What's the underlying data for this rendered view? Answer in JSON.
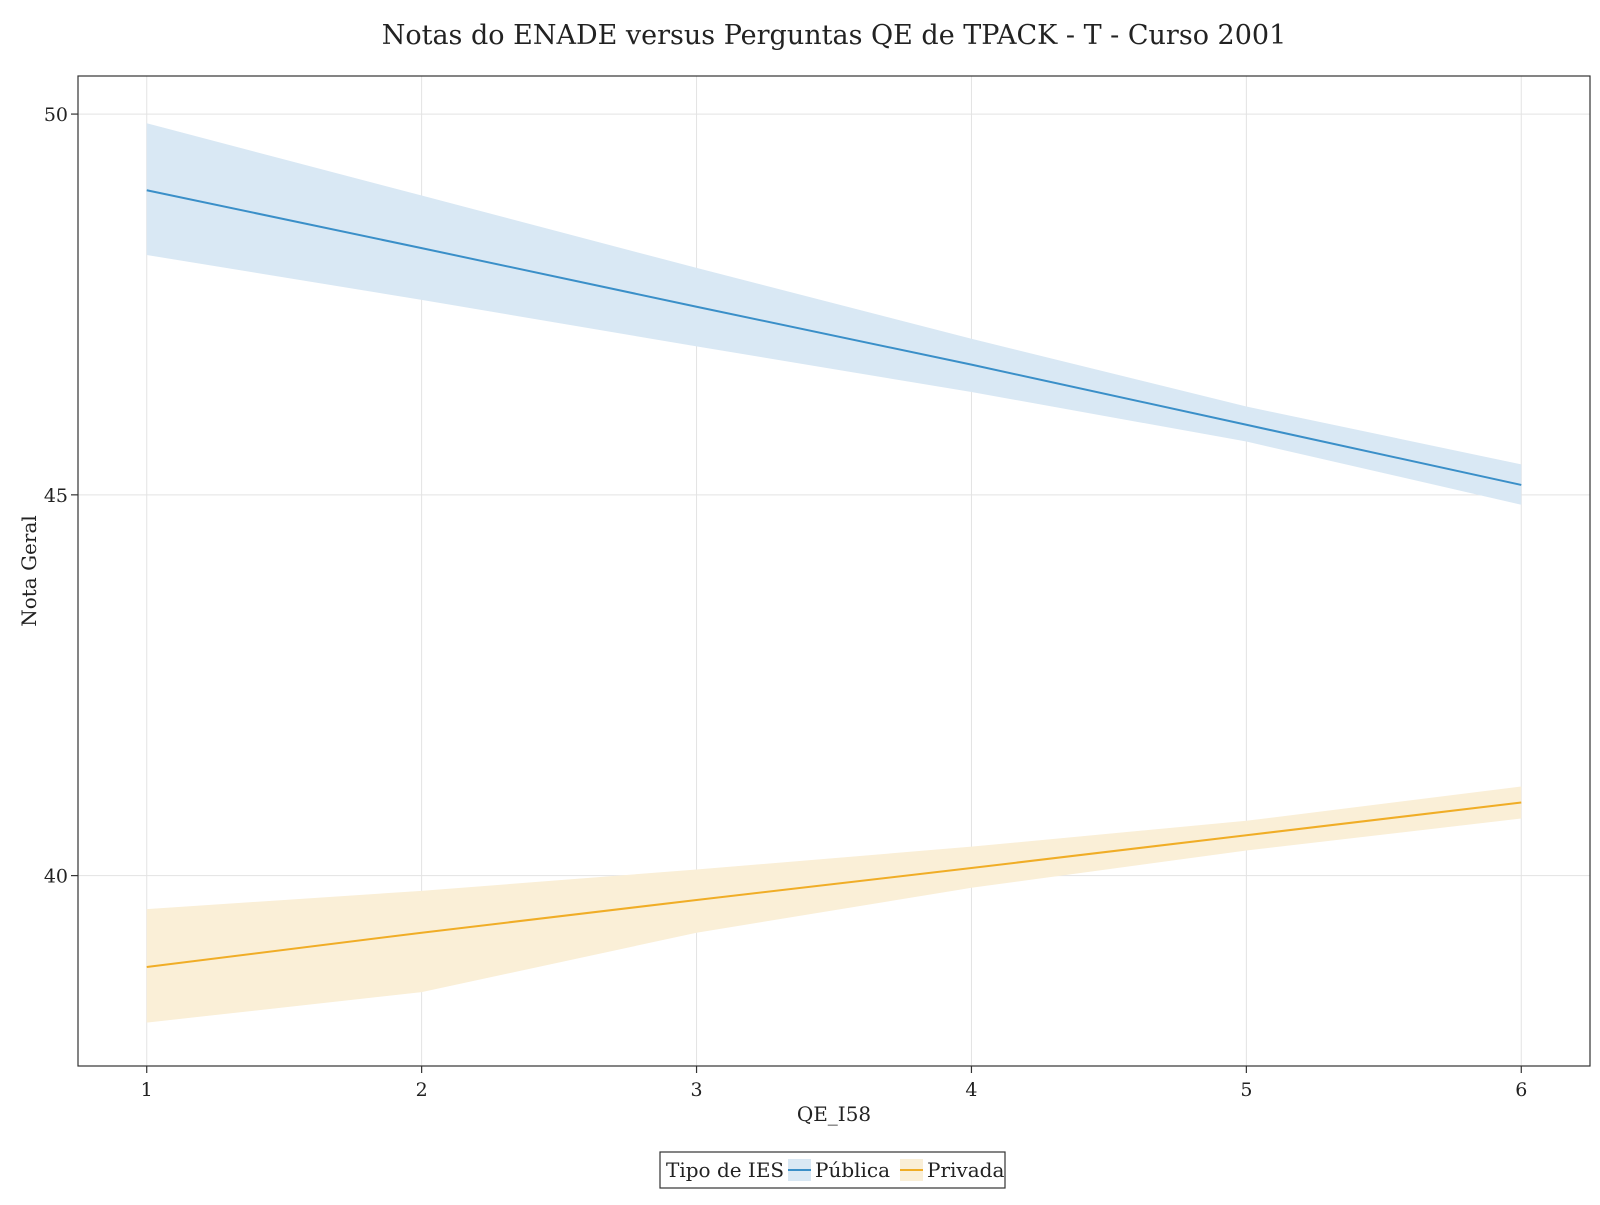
{
  "chart_data": {
    "type": "line",
    "title": "Notas do ENADE versus Perguntas QE de TPACK - T - Curso 2001",
    "xlabel": "QE_I58",
    "ylabel": "Nota Geral",
    "xlim": [
      0.75,
      6.25
    ],
    "ylim": [
      37.5,
      50.5
    ],
    "x_ticks": [
      1,
      2,
      3,
      4,
      5,
      6
    ],
    "y_ticks": [
      40,
      45,
      50
    ],
    "grid": true,
    "legend": {
      "title": "Tipo de IES",
      "placement": "bottom-center"
    },
    "series": [
      {
        "name": "Pública",
        "color": "#3a8fc8",
        "band_color": "#d9e8f4",
        "x": [
          1,
          2,
          3,
          4,
          5,
          6
        ],
        "y": [
          49.0,
          48.24,
          47.47,
          46.71,
          45.92,
          45.13
        ],
        "lower": [
          48.15,
          47.56,
          46.95,
          46.35,
          45.7,
          44.87
        ],
        "upper": [
          49.88,
          48.93,
          47.98,
          47.05,
          46.16,
          45.4
        ]
      },
      {
        "name": "Privada",
        "color": "#f0ad26",
        "band_color": "#faefd7",
        "x": [
          1,
          2,
          3,
          4,
          5,
          6
        ],
        "y": [
          38.8,
          39.25,
          39.68,
          40.1,
          40.53,
          40.96
        ],
        "lower": [
          38.07,
          38.47,
          39.25,
          39.84,
          40.33,
          40.75
        ],
        "upper": [
          39.56,
          39.8,
          40.08,
          40.38,
          40.72,
          41.17
        ]
      }
    ]
  }
}
